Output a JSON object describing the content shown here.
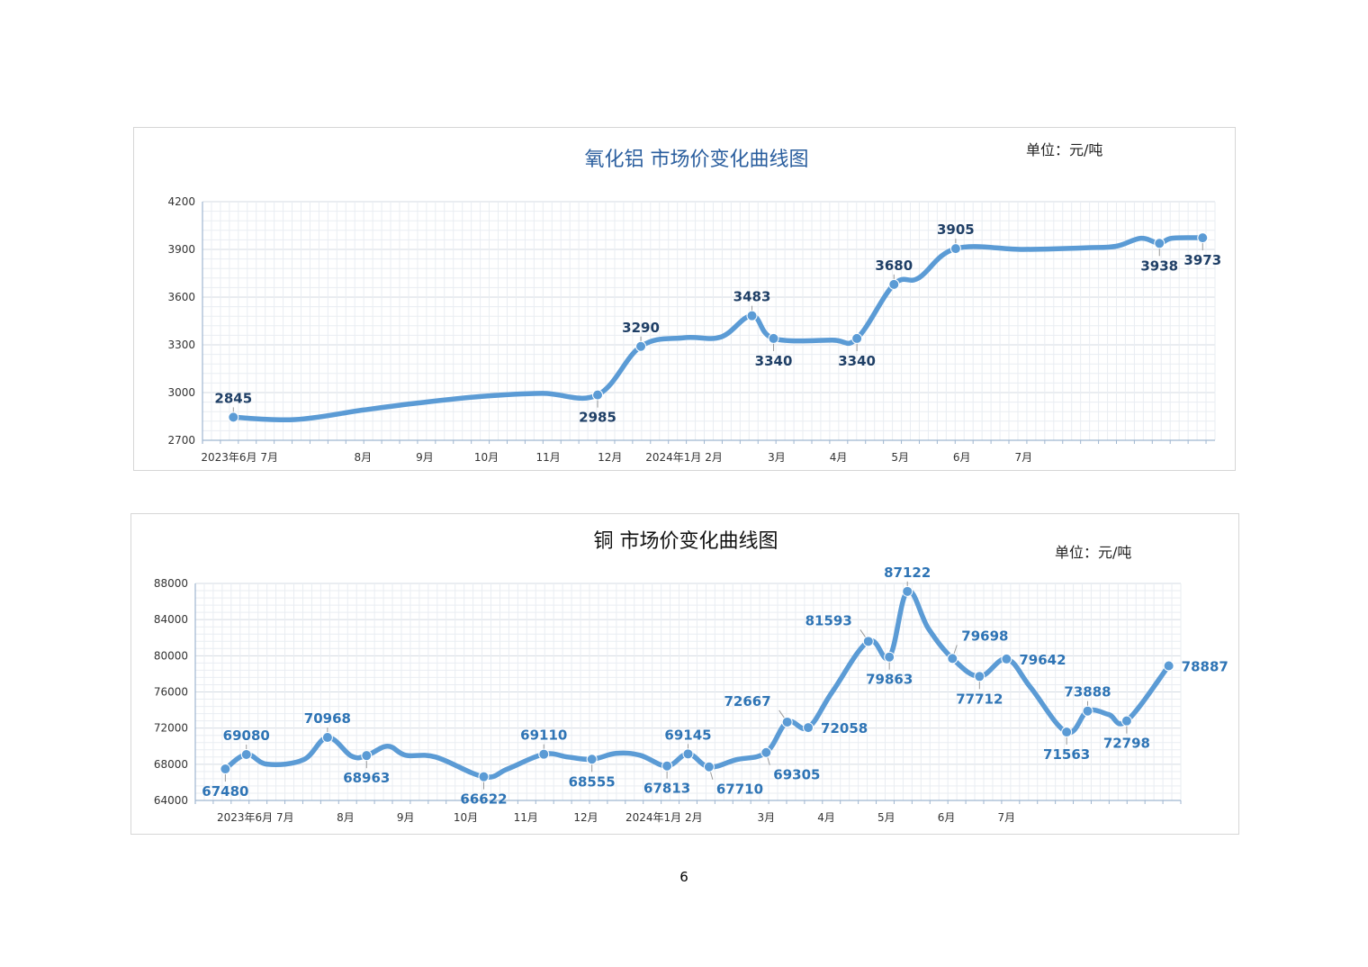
{
  "page_number": "6",
  "colors": {
    "line": "#5b9bd5",
    "label_dark": "#1f3f66",
    "label_blue": "#2e74b5",
    "title_a": "#2a5e9e",
    "title_b": "#111111",
    "grid_minor": "#e9edf2",
    "grid_major": "#d5dbe3",
    "axis": "#9fb6d0"
  },
  "chart_data": [
    {
      "type": "line",
      "title": "氧化铝  市场价变化曲线图",
      "unit_label": "单位：元/吨",
      "ylim": [
        2700,
        4200
      ],
      "y_ticks": [
        "4200",
        "3900",
        "3600",
        "3300",
        "3000",
        "2700"
      ],
      "x_ticks": [
        "2023年6月 7月",
        "8月",
        "9月",
        "10月",
        "11月",
        "12月",
        "2024年1月 2月",
        "3月",
        "4月",
        "5月",
        "6月",
        "7月"
      ],
      "x_tick_positions": [
        0.6,
        2.6,
        3.6,
        4.6,
        5.6,
        6.6,
        7.8,
        9.3,
        10.3,
        11.3,
        12.3,
        13.3
      ],
      "xlim": [
        0,
        16.4
      ],
      "grid": true,
      "series": [
        {
          "x": [
            0.5,
            1.5,
            2.6,
            3.5,
            4.5,
            5.5,
            6.4,
            7.1,
            7.8,
            8.4,
            8.9,
            9.25,
            10.2,
            10.6,
            11.2,
            11.6,
            12.2,
            13.3,
            14.3,
            14.8,
            15.2,
            15.5,
            15.7,
            16.2
          ],
          "y": [
            2845,
            2830,
            2890,
            2935,
            2975,
            2995,
            2985,
            3290,
            3345,
            3350,
            3483,
            3340,
            3330,
            3340,
            3680,
            3720,
            3905,
            3900,
            3910,
            3920,
            3970,
            3938,
            3970,
            3973
          ]
        }
      ],
      "data_labels": [
        {
          "text": "2845",
          "x": 0.5,
          "y": 2845,
          "pos": "above"
        },
        {
          "text": "2985",
          "x": 6.4,
          "y": 2985,
          "pos": "below"
        },
        {
          "text": "3290",
          "x": 7.1,
          "y": 3290,
          "pos": "above"
        },
        {
          "text": "3483",
          "x": 8.9,
          "y": 3483,
          "pos": "above"
        },
        {
          "text": "3340",
          "x": 9.25,
          "y": 3340,
          "pos": "below"
        },
        {
          "text": "3340",
          "x": 10.6,
          "y": 3340,
          "pos": "below"
        },
        {
          "text": "3680",
          "x": 11.2,
          "y": 3680,
          "pos": "above"
        },
        {
          "text": "3905",
          "x": 12.2,
          "y": 3905,
          "pos": "above"
        },
        {
          "text": "3938",
          "x": 15.5,
          "y": 3938,
          "pos": "below"
        },
        {
          "text": "3973",
          "x": 16.2,
          "y": 3973,
          "pos": "below"
        }
      ]
    },
    {
      "type": "line",
      "title": "铜  市场价变化曲线图",
      "unit_label": "单位：元/吨",
      "ylim": [
        64000,
        88000
      ],
      "y_ticks": [
        "88000",
        "84000",
        "80000",
        "76000",
        "72000",
        "68000",
        "64000"
      ],
      "x_ticks": [
        "2023年6月 7月",
        "8月",
        "9月",
        "10月",
        "11月",
        "12月",
        "2024年1月 2月",
        "3月",
        "4月",
        "5月",
        "6月",
        "7月"
      ],
      "x_tick_positions": [
        1.0,
        2.5,
        3.5,
        4.5,
        5.5,
        6.5,
        7.8,
        9.5,
        10.5,
        11.5,
        12.5,
        13.5
      ],
      "xlim": [
        0,
        16.4
      ],
      "grid": true,
      "series": [
        {
          "x": [
            0.5,
            0.85,
            1.2,
            1.8,
            2.2,
            2.6,
            2.85,
            3.2,
            3.5,
            4.0,
            4.8,
            5.2,
            5.8,
            6.2,
            6.6,
            7.0,
            7.4,
            7.85,
            8.2,
            8.55,
            9.0,
            9.5,
            9.85,
            10.2,
            10.6,
            11.2,
            11.55,
            11.85,
            12.2,
            12.6,
            13.05,
            13.5,
            13.9,
            14.5,
            14.85,
            15.2,
            15.5,
            16.2
          ],
          "y": [
            67480,
            69080,
            68000,
            68500,
            70968,
            68900,
            68963,
            70000,
            69000,
            68800,
            66622,
            67500,
            69110,
            68800,
            68555,
            69200,
            69000,
            67813,
            69145,
            67710,
            68500,
            69305,
            72667,
            72058,
            76000,
            81593,
            79863,
            87122,
            83000,
            79698,
            77712,
            79642,
            76500,
            71563,
            73888,
            73500,
            72798,
            78887
          ]
        }
      ],
      "data_labels": [
        {
          "text": "67480",
          "x": 0.5,
          "y": 67480,
          "pos": "below"
        },
        {
          "text": "69080",
          "x": 0.85,
          "y": 69080,
          "pos": "above"
        },
        {
          "text": "70968",
          "x": 2.2,
          "y": 70968,
          "pos": "above"
        },
        {
          "text": "68963",
          "x": 2.85,
          "y": 68963,
          "pos": "below"
        },
        {
          "text": "66622",
          "x": 4.8,
          "y": 66622,
          "pos": "below"
        },
        {
          "text": "69110",
          "x": 5.8,
          "y": 69110,
          "pos": "above"
        },
        {
          "text": "68555",
          "x": 6.6,
          "y": 68555,
          "pos": "below"
        },
        {
          "text": "67813",
          "x": 7.85,
          "y": 67813,
          "pos": "below"
        },
        {
          "text": "69145",
          "x": 8.2,
          "y": 69145,
          "pos": "above"
        },
        {
          "text": "67710",
          "x": 8.55,
          "y": 67710,
          "pos": "below-right"
        },
        {
          "text": "72667",
          "x": 9.85,
          "y": 72667,
          "pos": "above-left"
        },
        {
          "text": "69305",
          "x": 9.5,
          "y": 69305,
          "pos": "below-right"
        },
        {
          "text": "72058",
          "x": 10.2,
          "y": 72058,
          "pos": "right"
        },
        {
          "text": "81593",
          "x": 11.2,
          "y": 81593,
          "pos": "above-left"
        },
        {
          "text": "79863",
          "x": 11.55,
          "y": 79863,
          "pos": "below"
        },
        {
          "text": "87122",
          "x": 11.85,
          "y": 87122,
          "pos": "above"
        },
        {
          "text": "79698",
          "x": 12.6,
          "y": 79698,
          "pos": "above-right"
        },
        {
          "text": "77712",
          "x": 13.05,
          "y": 77712,
          "pos": "below"
        },
        {
          "text": "79642",
          "x": 13.5,
          "y": 79642,
          "pos": "right"
        },
        {
          "text": "71563",
          "x": 14.5,
          "y": 71563,
          "pos": "below"
        },
        {
          "text": "73888",
          "x": 14.85,
          "y": 73888,
          "pos": "above"
        },
        {
          "text": "72798",
          "x": 15.5,
          "y": 72798,
          "pos": "below"
        },
        {
          "text": "78887",
          "x": 16.2,
          "y": 78887,
          "pos": "right"
        }
      ]
    }
  ]
}
